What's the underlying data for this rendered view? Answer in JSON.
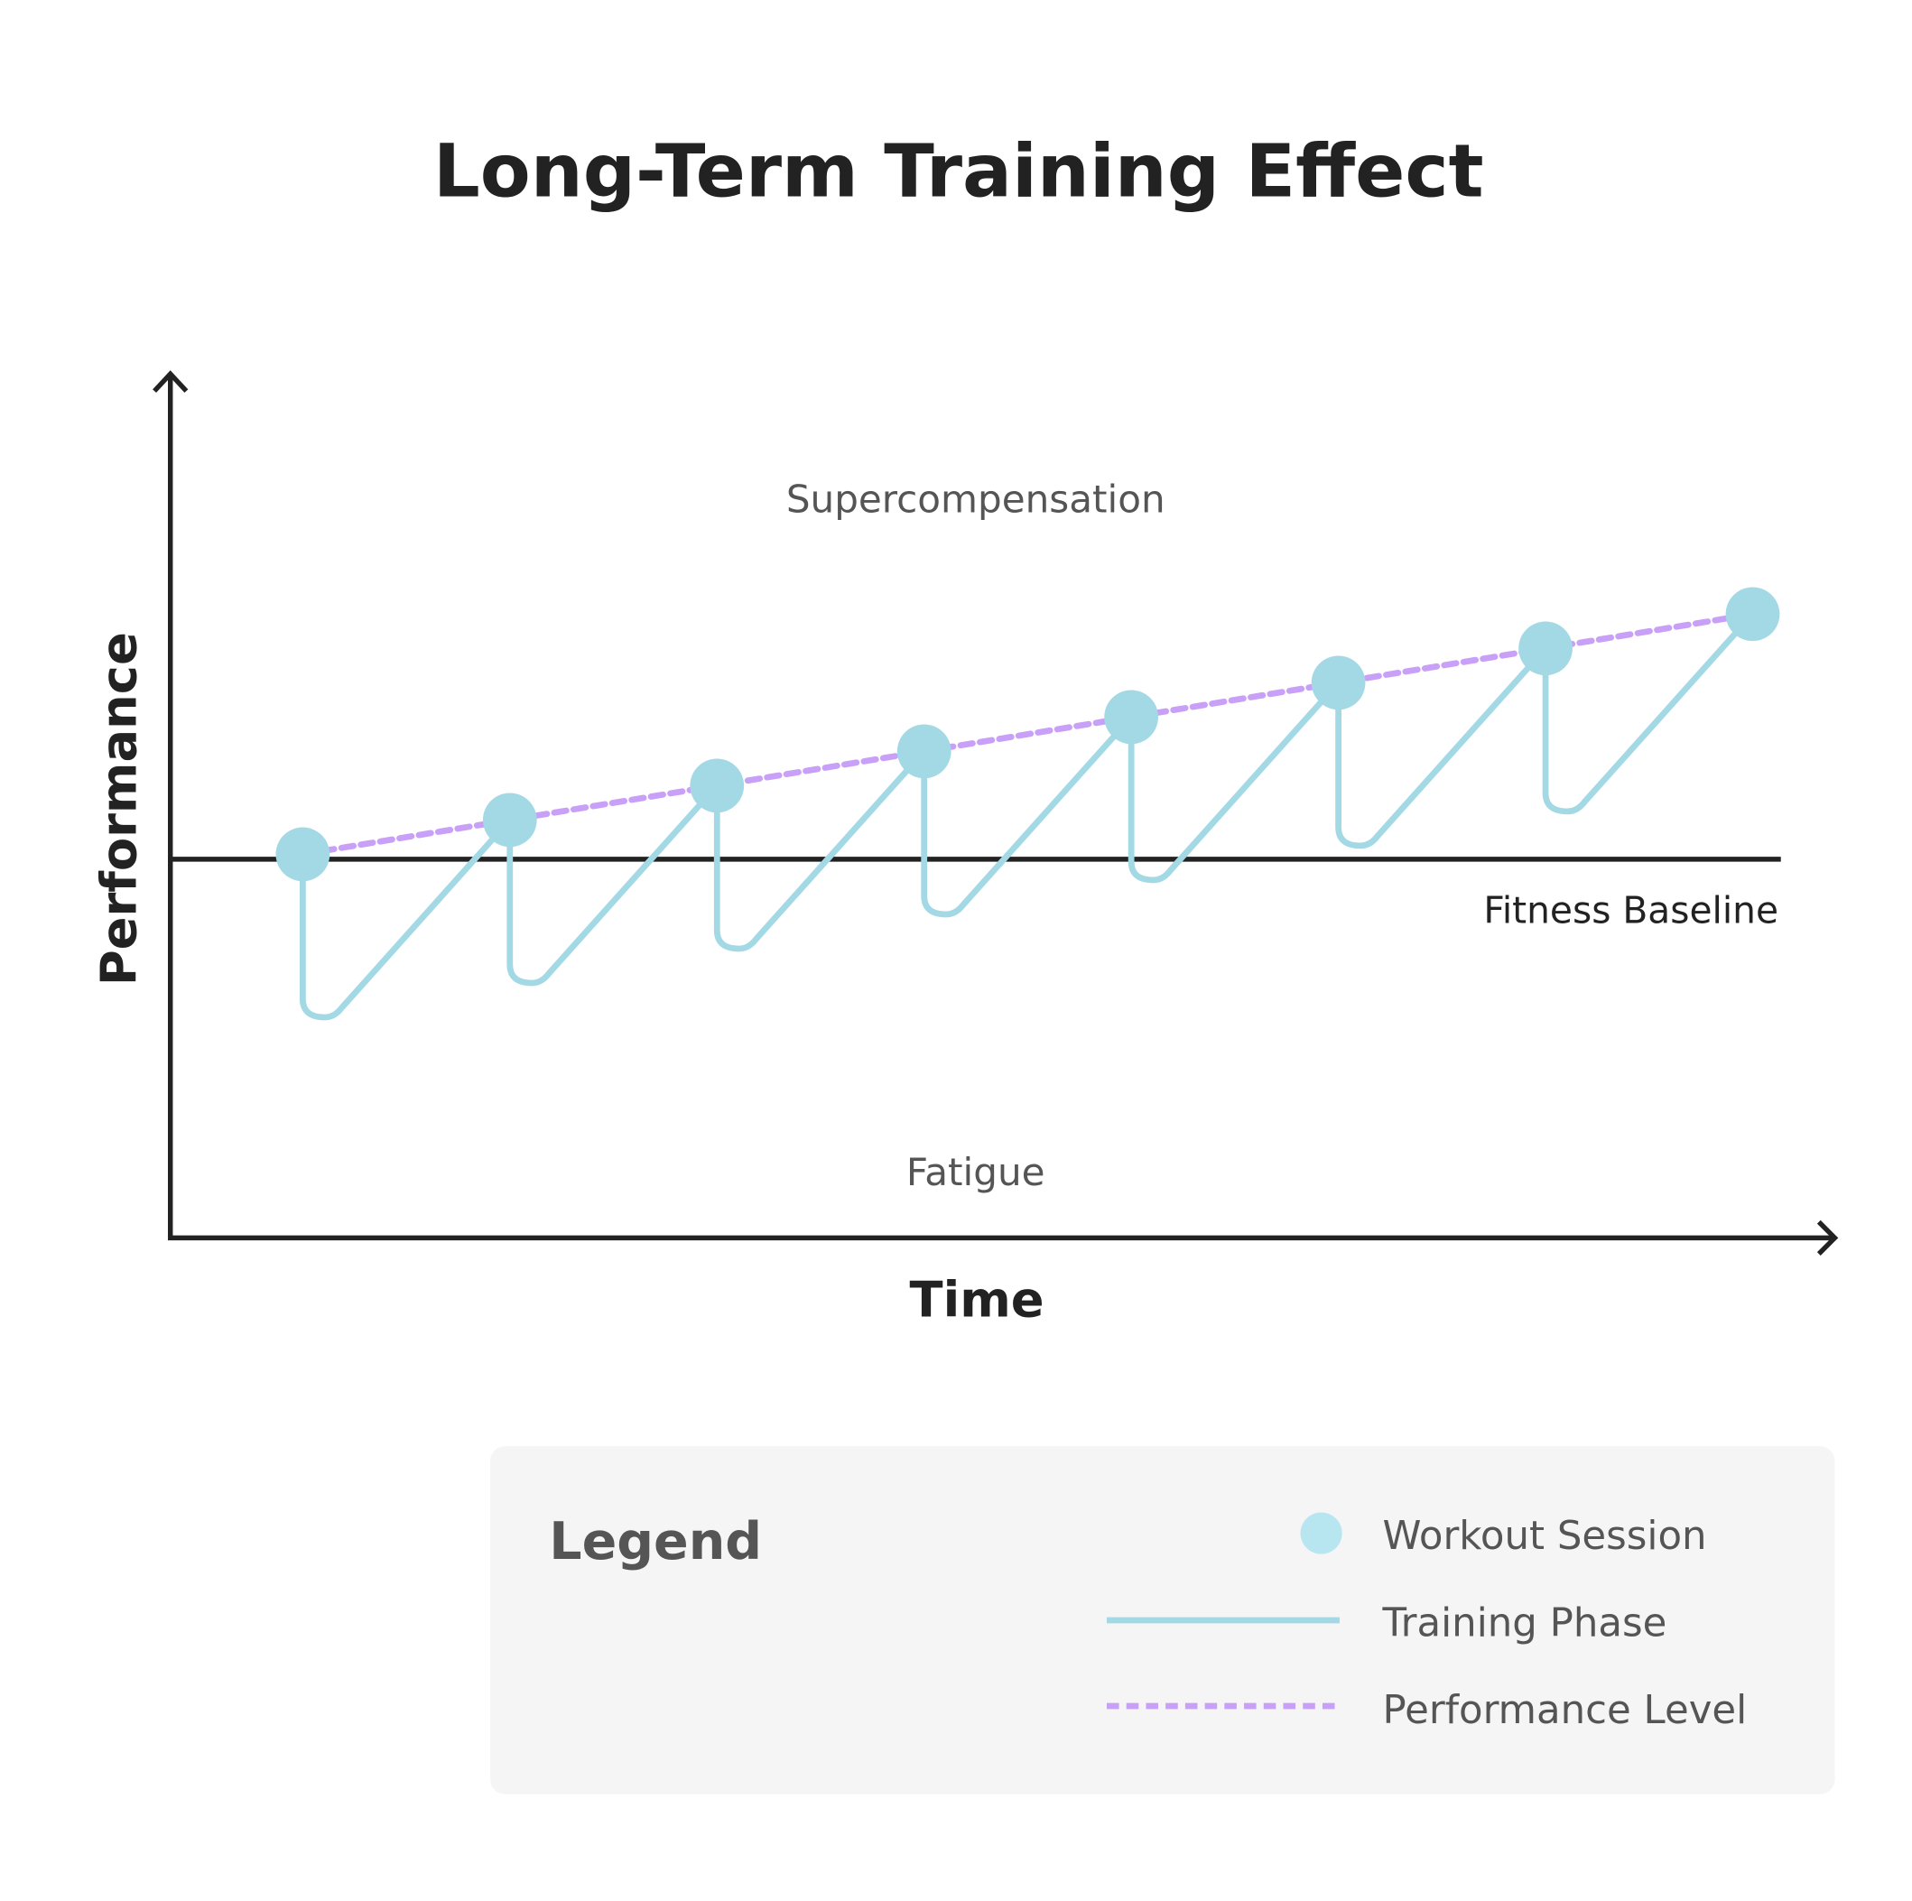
{
  "title": "Long-Term Training Effect",
  "axes": {
    "x_label": "Time",
    "y_label": "Performance"
  },
  "regions": {
    "above": "Supercompensation",
    "below": "Fatigue"
  },
  "baseline_label": "Fitness Baseline",
  "sessions_count": 8,
  "colors": {
    "session": "#a3d9e5",
    "session_legend": "#b8e6f0",
    "training_phase": "#a3d9e5",
    "performance_level": "#c9a0f7",
    "axis": "#222222",
    "legend_bg": "#f5f5f5"
  },
  "legend": {
    "title": "Legend",
    "items": [
      {
        "label": "Workout Session",
        "icon": "circle"
      },
      {
        "label": "Training Phase",
        "icon": "solid-line"
      },
      {
        "label": "Performance Level",
        "icon": "dashed-line"
      }
    ]
  }
}
